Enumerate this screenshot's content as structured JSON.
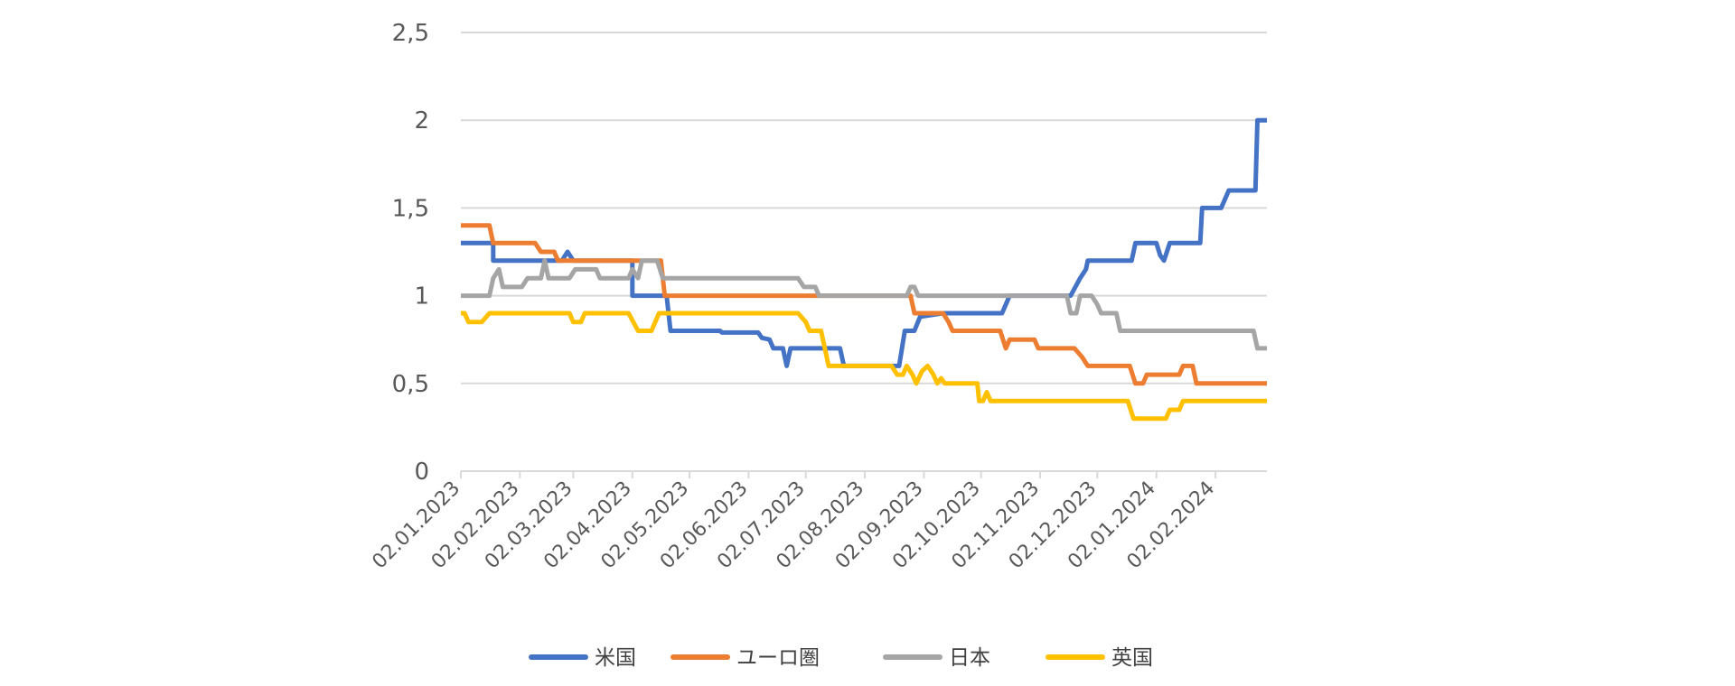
{
  "chart_data": {
    "type": "line",
    "ylim": [
      0,
      2.5
    ],
    "yticks": [
      "0",
      "0,5",
      "1",
      "1,5",
      "2",
      "2,5"
    ],
    "ytick_values": [
      0,
      0.5,
      1,
      1.5,
      2,
      2.5
    ],
    "xlim": [
      "2023-01-02",
      "2024-02-29"
    ],
    "xtick_labels": [
      "02.01.2023",
      "02.02.2023",
      "02.03.2023",
      "02.04.2023",
      "02.05.2023",
      "02.06.2023",
      "02.07.2023",
      "02.08.2023",
      "02.09.2023",
      "02.10.2023",
      "02.11.2023",
      "02.12.2023",
      "02.01.2024",
      "02.02.2024"
    ],
    "xtick_dates": [
      "2023-01-02",
      "2023-02-02",
      "2023-03-02",
      "2023-04-02",
      "2023-05-02",
      "2023-06-02",
      "2023-07-02",
      "2023-08-02",
      "2023-09-02",
      "2023-10-02",
      "2023-11-02",
      "2023-12-02",
      "2024-01-02",
      "2024-02-02"
    ],
    "grid": "horizontal",
    "legend_position": "bottom",
    "series": [
      {
        "name": "米国",
        "color": "#4472C4",
        "points": [
          [
            "2023-01-02",
            1.3
          ],
          [
            "2023-01-19",
            1.3
          ],
          [
            "2023-01-19",
            1.2
          ],
          [
            "2023-02-24",
            1.2
          ],
          [
            "2023-02-27",
            1.25
          ],
          [
            "2023-03-02",
            1.2
          ],
          [
            "2023-03-30",
            1.2
          ],
          [
            "2023-04-02",
            1.2
          ],
          [
            "2023-04-02",
            1.0
          ],
          [
            "2023-04-20",
            1.0
          ],
          [
            "2023-04-22",
            0.8
          ],
          [
            "2023-05-18",
            0.8
          ],
          [
            "2023-05-19",
            0.79
          ],
          [
            "2023-06-07",
            0.79
          ],
          [
            "2023-06-09",
            0.76
          ],
          [
            "2023-06-13",
            0.75
          ],
          [
            "2023-06-15",
            0.7
          ],
          [
            "2023-06-20",
            0.7
          ],
          [
            "2023-06-22",
            0.6
          ],
          [
            "2023-06-24",
            0.7
          ],
          [
            "2023-07-20",
            0.7
          ],
          [
            "2023-07-22",
            0.6
          ],
          [
            "2023-08-20",
            0.6
          ],
          [
            "2023-08-23",
            0.8
          ],
          [
            "2023-08-28",
            0.8
          ],
          [
            "2023-08-31",
            0.88
          ],
          [
            "2023-09-12",
            0.9
          ],
          [
            "2023-10-13",
            0.9
          ],
          [
            "2023-10-17",
            1.0
          ],
          [
            "2023-11-18",
            1.0
          ],
          [
            "2023-11-23",
            1.1
          ],
          [
            "2023-11-26",
            1.15
          ],
          [
            "2023-11-27",
            1.2
          ],
          [
            "2023-12-20",
            1.2
          ],
          [
            "2023-12-22",
            1.3
          ],
          [
            "2024-01-02",
            1.3
          ],
          [
            "2024-01-04",
            1.23
          ],
          [
            "2024-01-06",
            1.2
          ],
          [
            "2024-01-09",
            1.3
          ],
          [
            "2024-01-25",
            1.3
          ],
          [
            "2024-01-26",
            1.5
          ],
          [
            "2024-02-05",
            1.5
          ],
          [
            "2024-02-09",
            1.6
          ],
          [
            "2024-02-23",
            1.6
          ],
          [
            "2024-02-24",
            2.0
          ],
          [
            "2024-02-29",
            2.0
          ]
        ]
      },
      {
        "name": "ユーロ圏",
        "color": "#ED7D31",
        "points": [
          [
            "2023-01-02",
            1.4
          ],
          [
            "2023-01-17",
            1.4
          ],
          [
            "2023-01-19",
            1.3
          ],
          [
            "2023-02-10",
            1.3
          ],
          [
            "2023-02-13",
            1.25
          ],
          [
            "2023-02-20",
            1.25
          ],
          [
            "2023-02-22",
            1.2
          ],
          [
            "2023-04-02",
            1.2
          ],
          [
            "2023-04-02",
            1.2
          ],
          [
            "2023-04-17",
            1.2
          ],
          [
            "2023-04-19",
            1.0
          ],
          [
            "2023-07-12",
            1.0
          ],
          [
            "2023-08-20",
            1.0
          ],
          [
            "2023-08-26",
            1.0
          ],
          [
            "2023-08-28",
            0.9
          ],
          [
            "2023-09-12",
            0.9
          ],
          [
            "2023-09-15",
            0.85
          ],
          [
            "2023-09-17",
            0.8
          ],
          [
            "2023-10-12",
            0.8
          ],
          [
            "2023-10-15",
            0.7
          ],
          [
            "2023-10-17",
            0.75
          ],
          [
            "2023-10-30",
            0.75
          ],
          [
            "2023-11-01",
            0.7
          ],
          [
            "2023-11-20",
            0.7
          ],
          [
            "2023-11-24",
            0.65
          ],
          [
            "2023-11-27",
            0.6
          ],
          [
            "2023-12-19",
            0.6
          ],
          [
            "2023-12-22",
            0.5
          ],
          [
            "2023-12-26",
            0.5
          ],
          [
            "2023-12-28",
            0.55
          ],
          [
            "2024-01-14",
            0.55
          ],
          [
            "2024-01-16",
            0.6
          ],
          [
            "2024-01-21",
            0.6
          ],
          [
            "2024-01-23",
            0.5
          ],
          [
            "2024-02-29",
            0.5
          ]
        ]
      },
      {
        "name": "日本",
        "color": "#A5A5A5",
        "points": [
          [
            "2023-01-02",
            1.0
          ],
          [
            "2023-01-17",
            1.0
          ],
          [
            "2023-01-19",
            1.1
          ],
          [
            "2023-01-22",
            1.15
          ],
          [
            "2023-01-24",
            1.05
          ],
          [
            "2023-02-03",
            1.05
          ],
          [
            "2023-02-06",
            1.1
          ],
          [
            "2023-02-13",
            1.1
          ],
          [
            "2023-02-15",
            1.2
          ],
          [
            "2023-02-17",
            1.1
          ],
          [
            "2023-02-28",
            1.1
          ],
          [
            "2023-03-03",
            1.15
          ],
          [
            "2023-03-14",
            1.15
          ],
          [
            "2023-03-16",
            1.1
          ],
          [
            "2023-03-31",
            1.1
          ],
          [
            "2023-04-02",
            1.15
          ],
          [
            "2023-04-05",
            1.1
          ],
          [
            "2023-04-07",
            1.2
          ],
          [
            "2023-04-15",
            1.2
          ],
          [
            "2023-04-18",
            1.1
          ],
          [
            "2023-06-28",
            1.1
          ],
          [
            "2023-07-01",
            1.05
          ],
          [
            "2023-07-07",
            1.05
          ],
          [
            "2023-07-09",
            1.0
          ],
          [
            "2023-08-24",
            1.0
          ],
          [
            "2023-08-26",
            1.05
          ],
          [
            "2023-08-28",
            1.05
          ],
          [
            "2023-08-30",
            1.0
          ],
          [
            "2023-11-16",
            1.0
          ],
          [
            "2023-11-18",
            0.9
          ],
          [
            "2023-11-21",
            0.9
          ],
          [
            "2023-11-23",
            1.0
          ],
          [
            "2023-11-29",
            1.0
          ],
          [
            "2023-12-02",
            0.95
          ],
          [
            "2023-12-04",
            0.9
          ],
          [
            "2023-12-12",
            0.9
          ],
          [
            "2023-12-14",
            0.8
          ],
          [
            "2024-02-22",
            0.8
          ],
          [
            "2024-02-24",
            0.7
          ],
          [
            "2024-02-29",
            0.7
          ]
        ]
      },
      {
        "name": "英国",
        "color": "#FFC000",
        "points": [
          [
            "2023-01-02",
            0.9
          ],
          [
            "2023-01-04",
            0.9
          ],
          [
            "2023-01-06",
            0.85
          ],
          [
            "2023-01-13",
            0.85
          ],
          [
            "2023-01-17",
            0.9
          ],
          [
            "2023-02-28",
            0.9
          ],
          [
            "2023-03-02",
            0.85
          ],
          [
            "2023-03/06",
            0.85
          ],
          [
            "2023-03-08",
            0.9
          ],
          [
            "2023-03-31",
            0.9
          ],
          [
            "2023-04-05",
            0.8
          ],
          [
            "2023-04-12",
            0.8
          ],
          [
            "2023-04-16",
            0.9
          ],
          [
            "2023-06-28",
            0.9
          ],
          [
            "2023-07-02",
            0.85
          ],
          [
            "2023-07-04",
            0.8
          ],
          [
            "2023-07-10",
            0.8
          ],
          [
            "2023-07-14",
            0.6
          ],
          [
            "2023-08-16",
            0.6
          ],
          [
            "2023-08-19",
            0.55
          ],
          [
            "2023-08-22",
            0.55
          ],
          [
            "2023-08-24",
            0.6
          ],
          [
            "2023-08-27",
            0.55
          ],
          [
            "2023-08-29",
            0.5
          ],
          [
            "2023-09-01",
            0.57
          ],
          [
            "2023-09-04",
            0.6
          ],
          [
            "2023-09-07",
            0.55
          ],
          [
            "2023-09-09",
            0.5
          ],
          [
            "2023-09-11",
            0.53
          ],
          [
            "2023-09-13",
            0.5
          ],
          [
            "2023-09-30",
            0.5
          ],
          [
            "2023-10-01",
            0.4
          ],
          [
            "2023-10-03",
            0.4
          ],
          [
            "2023-10-05",
            0.45
          ],
          [
            "2023-10-07",
            0.4
          ],
          [
            "2023-12-18",
            0.4
          ],
          [
            "2023-12-21",
            0.3
          ],
          [
            "2024-01-07",
            0.3
          ],
          [
            "2024-01-09",
            0.35
          ],
          [
            "2024-01-14",
            0.35
          ],
          [
            "2024-01-16",
            0.4
          ],
          [
            "2024-02-29",
            0.4
          ]
        ]
      }
    ]
  }
}
